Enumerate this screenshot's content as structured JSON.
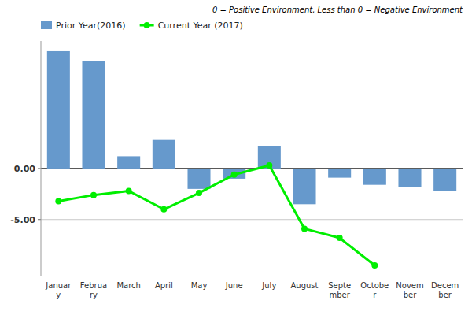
{
  "chart_data": {
    "type": "bar",
    "annotations": [
      "0 = Positive Environment, Less than 0 = Negative Environment"
    ],
    "categories": [
      "Januar\ny",
      "Februa\nry",
      "March",
      "April",
      "May",
      "June",
      "July",
      "August",
      "Septe\nmber",
      "Octobe\nr",
      "Novem\nber",
      "Decem\nber"
    ],
    "series": [
      {
        "name": "Prior Year(2016)",
        "type": "bar",
        "color": "#6699CC",
        "values": [
          11.5,
          10.5,
          1.2,
          2.8,
          -2.0,
          -1.0,
          2.2,
          -3.5,
          -0.9,
          -1.6,
          -1.8,
          -2.2
        ]
      },
      {
        "name": "Current Year (2017)",
        "type": "line",
        "color": "#00EE00",
        "marker": "circle",
        "values": [
          -3.2,
          -2.6,
          -2.2,
          -4.0,
          -2.4,
          -0.6,
          0.3,
          -5.9,
          -6.8,
          -9.5,
          null,
          null
        ]
      }
    ],
    "ylim": [
      -10.5,
      12.5
    ],
    "yticks": [
      {
        "value": 0.0,
        "label": "0.00"
      },
      {
        "value": -5.0,
        "label": "-5.00"
      }
    ],
    "grid": true,
    "legend": "top-left"
  }
}
